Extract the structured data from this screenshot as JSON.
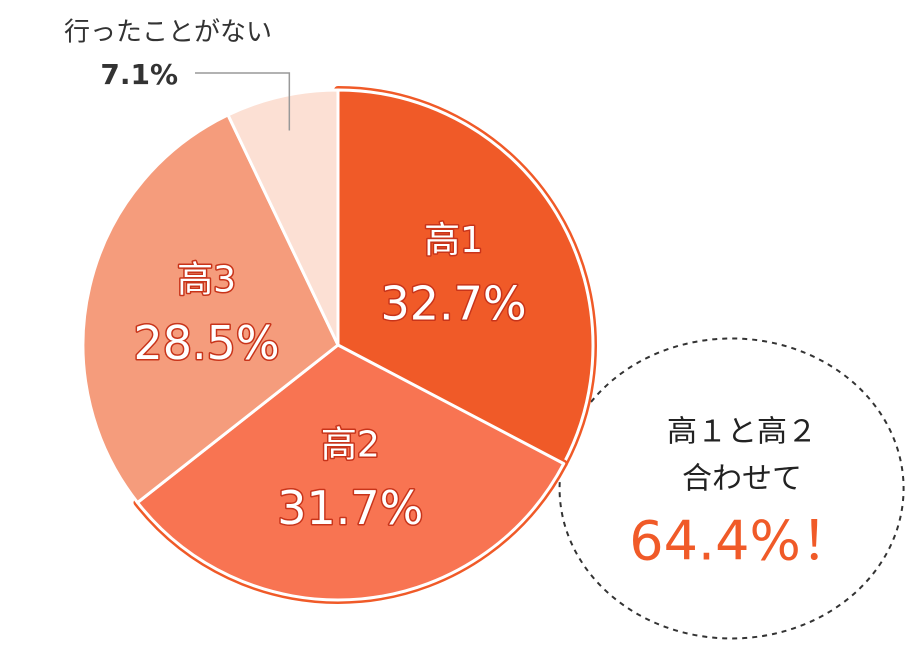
{
  "chart_data": {
    "type": "pie",
    "categories": [
      "高1",
      "高2",
      "高3",
      "行ったことがない"
    ],
    "values": [
      32.7,
      31.7,
      28.5,
      7.1
    ],
    "value_labels": [
      "32.7%",
      "31.7%",
      "28.5%",
      "7.1%"
    ],
    "colors": [
      "#f05a28",
      "#f87452",
      "#f59c7c",
      "#fce0d4"
    ],
    "annotation": {
      "lines": [
        "高１と高２",
        "合わせて"
      ],
      "highlight": "64.4%！"
    }
  }
}
